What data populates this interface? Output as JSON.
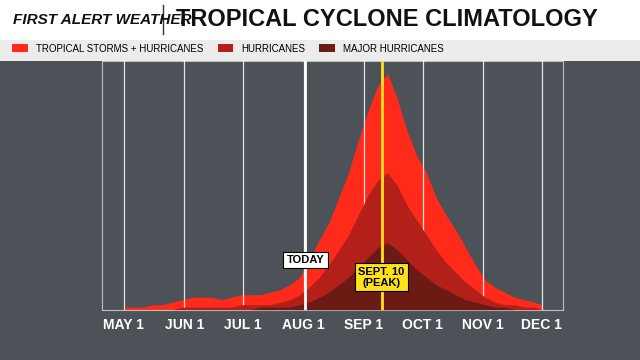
{
  "chart_data": {
    "type": "area",
    "brand": "FIRST ALERT WEATHER",
    "title": "TROPICAL CYCLONE CLIMATOLOGY",
    "x": [
      0,
      5,
      10,
      15,
      20,
      25,
      30,
      35,
      40,
      45,
      50,
      55,
      60,
      65,
      70,
      75,
      80,
      85,
      90,
      95,
      100,
      105,
      110,
      115,
      120,
      125,
      130,
      135,
      140,
      145,
      150,
      155,
      160,
      165,
      170,
      175,
      180,
      185,
      190,
      195,
      200,
      205,
      210,
      214
    ],
    "series": [
      {
        "name": "TROPICAL STORMS + HURRICANES",
        "color": "#ff2a1a",
        "values": [
          1,
          1,
          1,
          2,
          2,
          3,
          4,
          5,
          5,
          5,
          4,
          5,
          6,
          6,
          6,
          7,
          8,
          10,
          13,
          20,
          28,
          35,
          45,
          55,
          68,
          80,
          90,
          95,
          85,
          72,
          62,
          55,
          45,
          38,
          32,
          25,
          18,
          12,
          9,
          7,
          5,
          4,
          3,
          2
        ]
      },
      {
        "name": "HURRICANES",
        "color": "#b3201a",
        "values": [
          0,
          0,
          0,
          0,
          0,
          0,
          1,
          1,
          1,
          1,
          1,
          1,
          2,
          2,
          2,
          2,
          3,
          4,
          6,
          9,
          13,
          18,
          24,
          30,
          38,
          46,
          52,
          55,
          50,
          42,
          36,
          30,
          24,
          19,
          15,
          11,
          8,
          5,
          3,
          2,
          2,
          1,
          1,
          0
        ]
      },
      {
        "name": "MAJOR HURRICANES",
        "color": "#6b1a14",
        "values": [
          0,
          0,
          0,
          0,
          0,
          0,
          0,
          0,
          0,
          0,
          0,
          0,
          0,
          0,
          1,
          1,
          1,
          1,
          2,
          3,
          5,
          7,
          10,
          13,
          17,
          21,
          25,
          27,
          24,
          20,
          16,
          13,
          10,
          8,
          6,
          4,
          3,
          2,
          1,
          1,
          0,
          0,
          0,
          0
        ]
      }
    ],
    "xlim": [
      -11,
      225
    ],
    "ylim": [
      0,
      100
    ],
    "xticks": [
      {
        "value": 0,
        "label": "MAY 1"
      },
      {
        "value": 31,
        "label": "JUN 1"
      },
      {
        "value": 61,
        "label": "JUL 1"
      },
      {
        "value": 92,
        "label": "AUG 1"
      },
      {
        "value": 123,
        "label": "SEP 1"
      },
      {
        "value": 153,
        "label": "OCT 1"
      },
      {
        "value": 184,
        "label": "NOV 1"
      },
      {
        "value": 214,
        "label": "DEC 1"
      }
    ],
    "yticks": [],
    "grid": true,
    "legend": "upper left",
    "tick_labels": "x",
    "annotations": [
      {
        "x": 93,
        "text": "TODAY",
        "color": "#ffffff"
      },
      {
        "x": 132,
        "text": "SEPT. 10\n(PEAK)",
        "color": "#ffe21a"
      }
    ]
  }
}
